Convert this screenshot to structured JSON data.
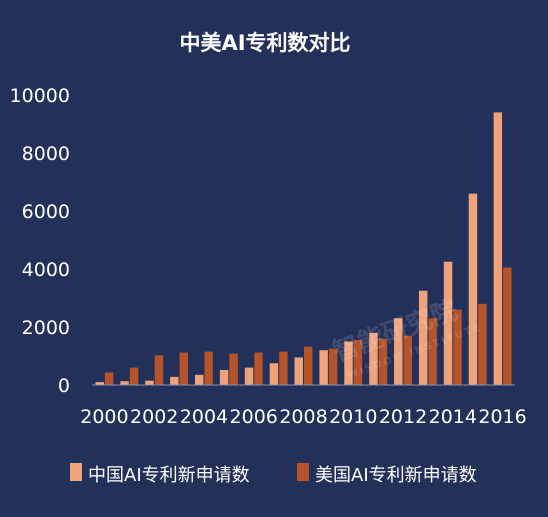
{
  "colors": {
    "background": "#23305a",
    "china": "#f0a37a",
    "usa": "#b5532b",
    "axis": "#8a93b0",
    "text": "#ffffff"
  },
  "chart_data": {
    "type": "bar",
    "title": "中美AI专利数对比",
    "xlabel": "",
    "ylabel": "",
    "ylim": [
      0,
      10000
    ],
    "yticks": [
      0,
      2000,
      4000,
      6000,
      8000,
      10000
    ],
    "categories": [
      "2000",
      "2001",
      "2002",
      "2003",
      "2004",
      "2005",
      "2006",
      "2007",
      "2008",
      "2009",
      "2010",
      "2011",
      "2012",
      "2013",
      "2014",
      "2015",
      "2016"
    ],
    "xtick_labels": [
      "2000",
      "2002",
      "2004",
      "2006",
      "2008",
      "2010",
      "2012",
      "2014",
      "2016"
    ],
    "grid": false,
    "legend_position": "bottom",
    "series": [
      {
        "name": "中国AI专利新申请数",
        "color": "#f0a37a",
        "values": [
          100,
          130,
          150,
          280,
          350,
          520,
          600,
          750,
          950,
          1200,
          1500,
          1800,
          2300,
          3250,
          4250,
          6600,
          9400
        ]
      },
      {
        "name": "美国AI专利新申请数",
        "color": "#b5532b",
        "values": [
          430,
          600,
          1020,
          1120,
          1150,
          1080,
          1120,
          1150,
          1320,
          1250,
          1550,
          1600,
          1700,
          2300,
          2600,
          2800,
          4050
        ]
      }
    ]
  },
  "watermark": {
    "text": "智能研究院",
    "subtext": "WISDOM INSTITUTE"
  }
}
